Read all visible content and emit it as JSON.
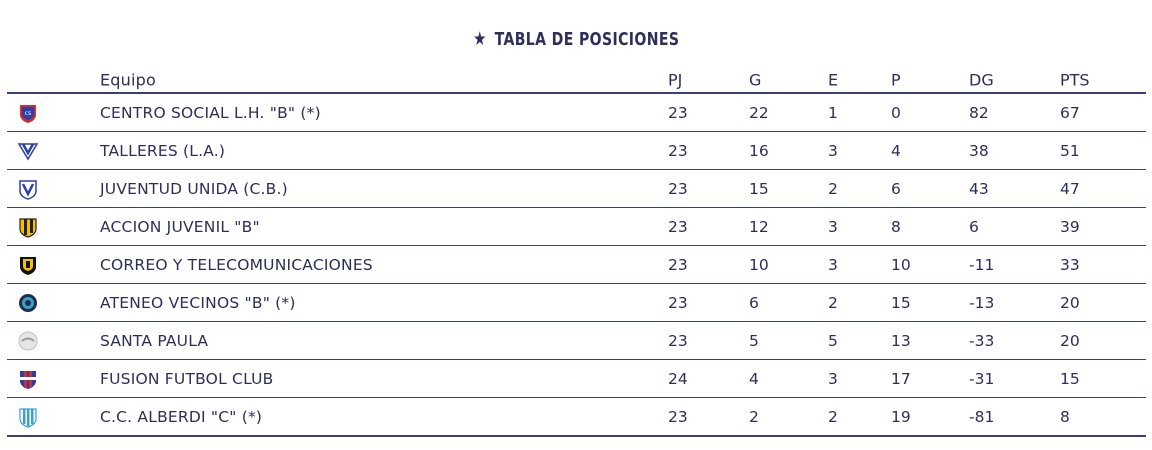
{
  "title": "TABLA DE POSICIONES",
  "icons": {
    "title": "star-icon"
  },
  "columns": {
    "team": "Equipo",
    "pj": "PJ",
    "g": "G",
    "e": "E",
    "p": "P",
    "dg": "DG",
    "pts": "PTS"
  },
  "rows": [
    {
      "team": "CENTRO SOCIAL L.H. \"B\" (*)",
      "pj": "23",
      "g": "22",
      "e": "1",
      "p": "0",
      "dg": "82",
      "pts": "67",
      "crest": "centro-social-crest-icon"
    },
    {
      "team": "TALLERES (L.A.)",
      "pj": "23",
      "g": "16",
      "e": "3",
      "p": "4",
      "dg": "38",
      "pts": "51",
      "crest": "talleres-crest-icon"
    },
    {
      "team": "JUVENTUD UNIDA (C.B.)",
      "pj": "23",
      "g": "15",
      "e": "2",
      "p": "6",
      "dg": "43",
      "pts": "47",
      "crest": "juventud-unida-crest-icon"
    },
    {
      "team": "ACCION JUVENIL \"B\"",
      "pj": "23",
      "g": "12",
      "e": "3",
      "p": "8",
      "dg": "6",
      "pts": "39",
      "crest": "accion-juvenil-crest-icon"
    },
    {
      "team": "CORREO Y TELECOMUNICACIONES",
      "pj": "23",
      "g": "10",
      "e": "3",
      "p": "10",
      "dg": "-11",
      "pts": "33",
      "crest": "correo-crest-icon"
    },
    {
      "team": "ATENEO VECINOS \"B\" (*)",
      "pj": "23",
      "g": "6",
      "e": "2",
      "p": "15",
      "dg": "-13",
      "pts": "20",
      "crest": "ateneo-crest-icon"
    },
    {
      "team": "SANTA PAULA",
      "pj": "23",
      "g": "5",
      "e": "5",
      "p": "13",
      "dg": "-33",
      "pts": "20",
      "crest": "santa-paula-crest-icon"
    },
    {
      "team": "FUSION FUTBOL CLUB",
      "pj": "24",
      "g": "4",
      "e": "3",
      "p": "17",
      "dg": "-31",
      "pts": "15",
      "crest": "fusion-crest-icon"
    },
    {
      "team": "C.C. ALBERDI \"C\" (*)",
      "pj": "23",
      "g": "2",
      "e": "2",
      "p": "19",
      "dg": "-81",
      "pts": "8",
      "crest": "alberdi-crest-icon"
    }
  ],
  "colors": {
    "text": "#2d2f5a",
    "rule": "#3b3f7a"
  }
}
